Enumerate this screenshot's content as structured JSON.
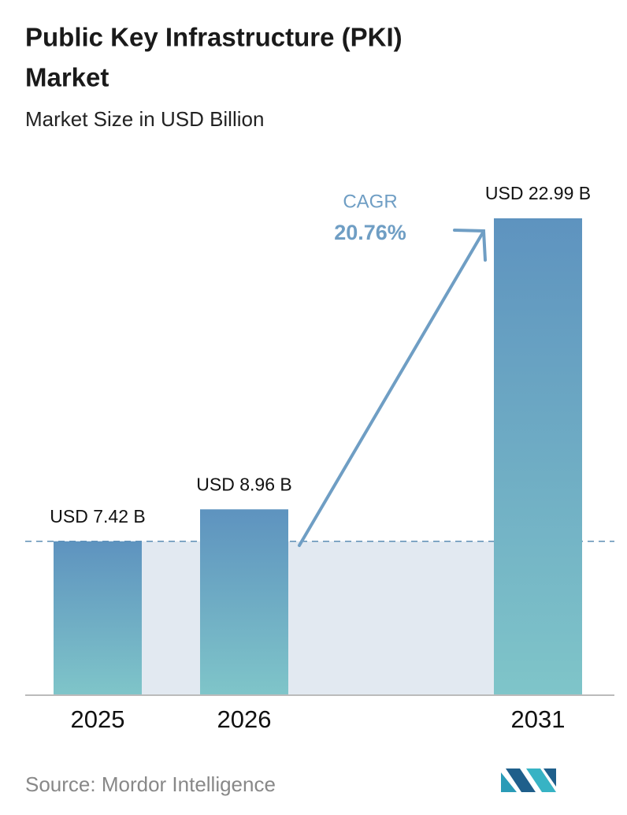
{
  "chart_data": {
    "type": "bar",
    "title": [
      "Public Key Infrastructure (PKI)",
      "Market"
    ],
    "subtitle": "Market Size in USD Billion",
    "categories": [
      "2025",
      "2026",
      "2031"
    ],
    "values": [
      7.42,
      8.96,
      22.99
    ],
    "value_labels": [
      "USD 7.42 B",
      "USD 8.96 B",
      "USD 22.99 B"
    ],
    "colors": [
      "#5e93bf",
      "#7fc5c9"
    ],
    "annotation": {
      "label": "CAGR",
      "value": "20.76%"
    },
    "source": "Source:  Mordor Intelligence"
  }
}
